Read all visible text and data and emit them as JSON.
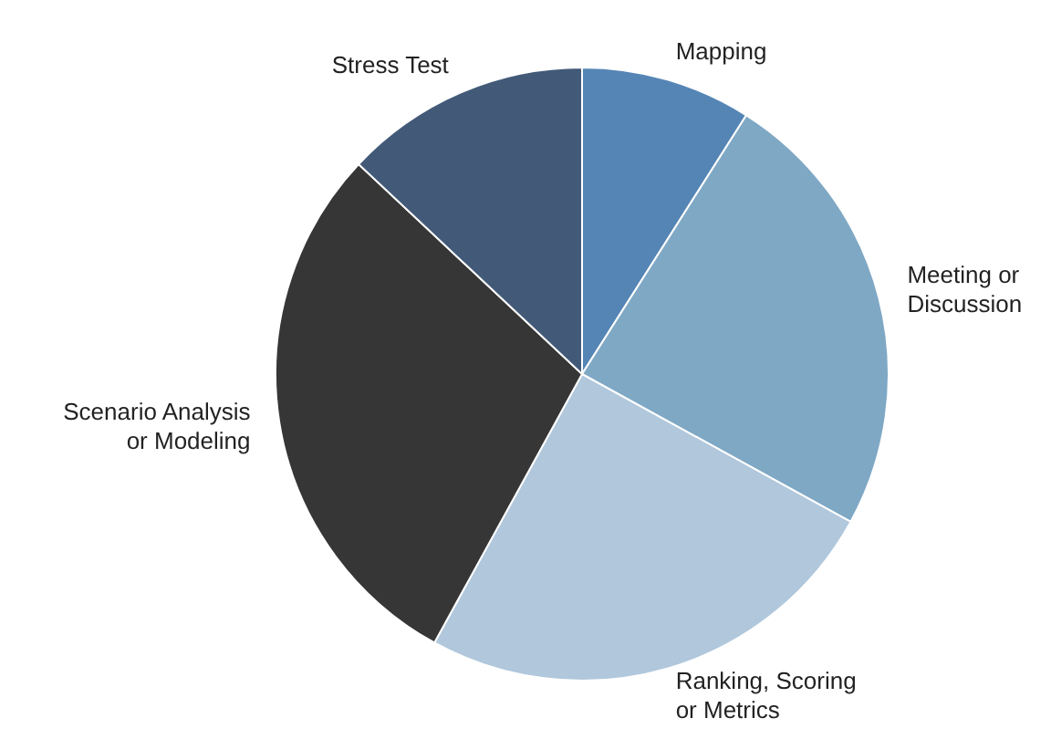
{
  "chart_data": {
    "type": "pie",
    "categories": [
      "Mapping",
      "Meeting or Discussion",
      "Ranking, Scoring or Metrics",
      "Scenario Analysis or Modeling",
      "Stress Test"
    ],
    "values": [
      9,
      24,
      25,
      29,
      13
    ],
    "colors": [
      "#5585b5",
      "#7fa8c5",
      "#b0c7dc",
      "#363636",
      "#425a78"
    ],
    "legend": false
  }
}
